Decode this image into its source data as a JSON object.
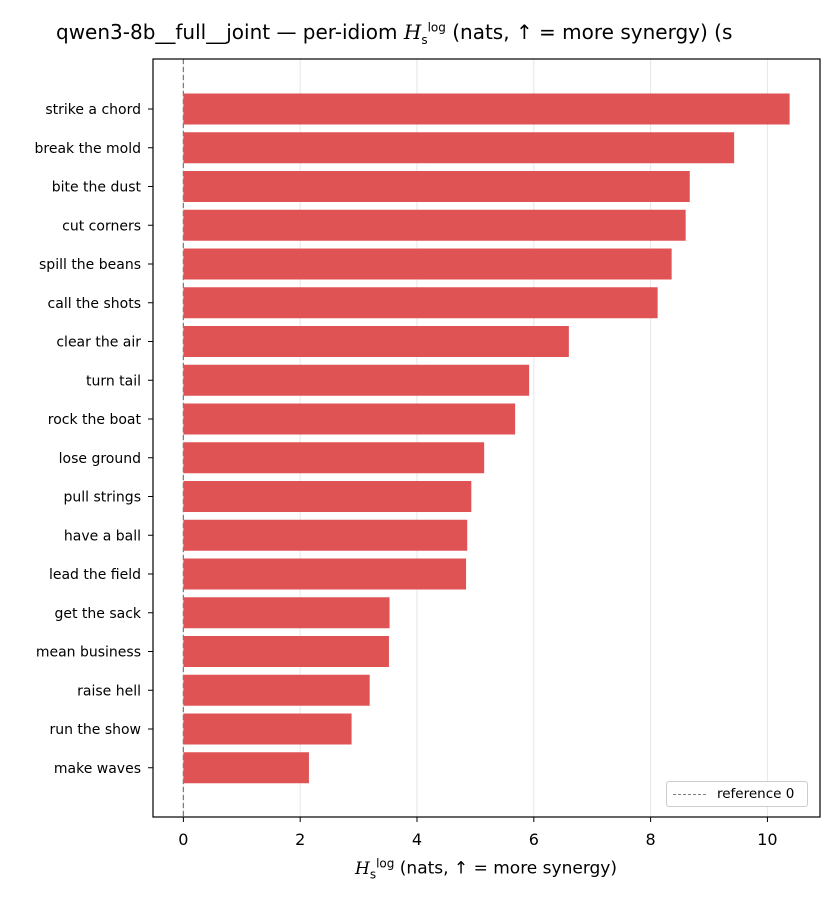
{
  "chart_data": {
    "type": "bar",
    "orientation": "horizontal",
    "title_prefix": "qwen3-8b__full__joint — per-idiom",
    "title_suffix": "(nats, ↑ = more synergy) (s",
    "symbol": {
      "base": "H",
      "sub": "s",
      "sup": "log"
    },
    "xlabel_suffix": "(nats, ↑ = more synergy)",
    "ylabel": "",
    "categories": [
      "strike a chord",
      "break the mold",
      "bite the dust",
      "cut corners",
      "spill the beans",
      "call the shots",
      "clear the air",
      "turn tail",
      "rock the boat",
      "lose ground",
      "pull strings",
      "have a ball",
      "lead the field",
      "get the sack",
      "mean business",
      "raise hell",
      "run the show",
      "make waves"
    ],
    "values": [
      10.38,
      9.43,
      8.67,
      8.6,
      8.36,
      8.12,
      6.6,
      5.92,
      5.68,
      5.15,
      4.93,
      4.86,
      4.84,
      3.53,
      3.52,
      3.19,
      2.88,
      2.15
    ],
    "xlim": [
      -0.52,
      10.9
    ],
    "xticks": [
      0,
      2,
      4,
      6,
      8,
      10
    ],
    "grid": "x",
    "bar_color": "#e05355",
    "reference_line": {
      "x": 0,
      "label": "reference 0",
      "color": "#7f7f7f"
    },
    "legend": {
      "placement": "lower-right",
      "entries": [
        "reference 0"
      ]
    }
  }
}
